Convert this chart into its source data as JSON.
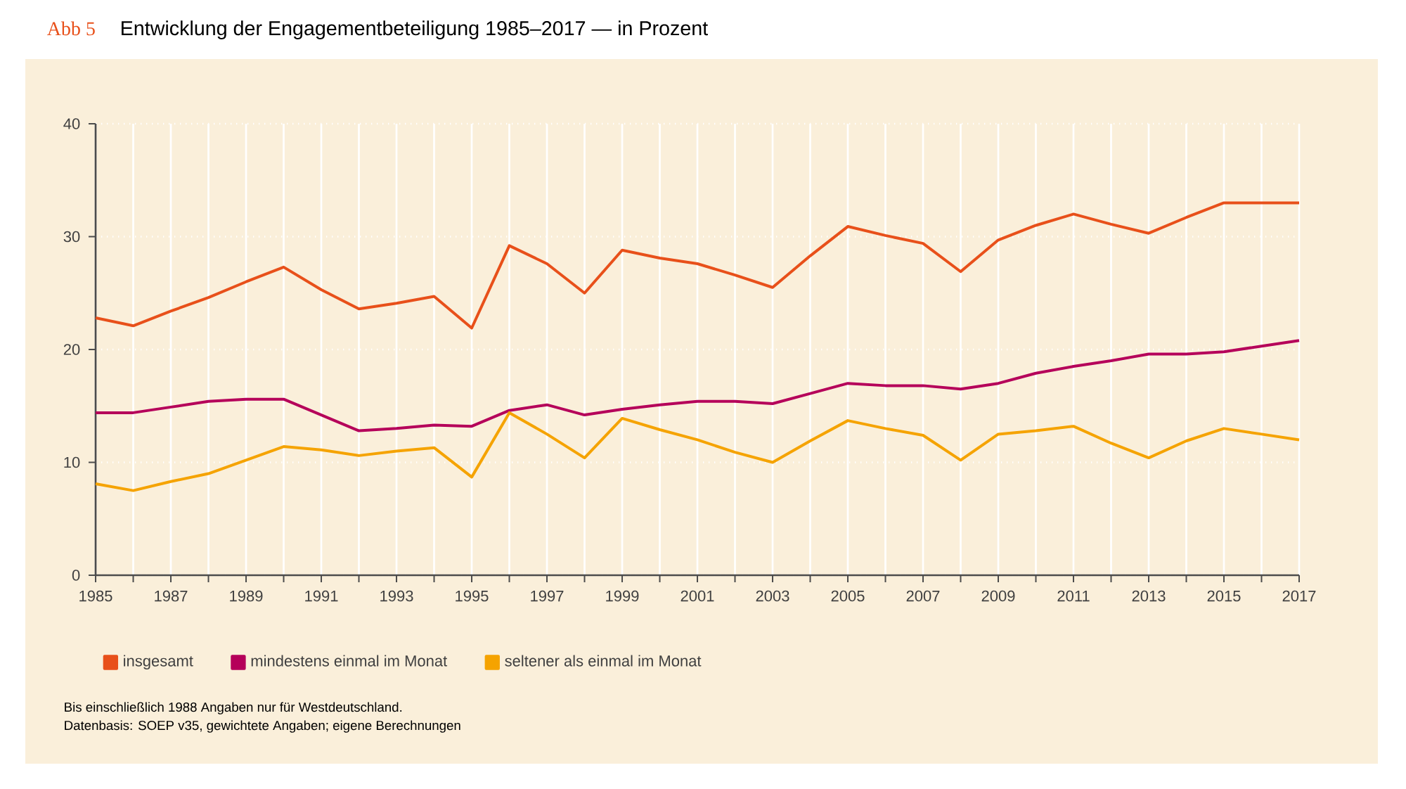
{
  "chart_data": {
    "type": "line",
    "title": "Entwicklung der Engagementbeteiligung 1985–2017 — in Prozent",
    "annotations": [
      "Abb 5",
      "Bis einschließlich 1988 Angaben nur für Westdeutschland.",
      "Datenbasis: SOEP v35, gewichtete Angaben; eigene Berechnungen"
    ],
    "x": [
      1985,
      1986,
      1987,
      1988,
      1989,
      1990,
      1991,
      1992,
      1993,
      1994,
      1995,
      1996,
      1997,
      1998,
      1999,
      2000,
      2001,
      2002,
      2003,
      2004,
      2005,
      2006,
      2007,
      2008,
      2009,
      2010,
      2011,
      2012,
      2013,
      2014,
      2015,
      2016,
      2017
    ],
    "series": [
      {
        "name": "insgesamt",
        "color": "#e8501a",
        "values": [
          22.8,
          22.1,
          23.4,
          24.6,
          26.0,
          27.3,
          25.3,
          23.6,
          24.1,
          24.7,
          21.9,
          29.2,
          27.6,
          25.0,
          28.8,
          28.1,
          27.6,
          26.6,
          25.5,
          28.3,
          30.9,
          30.1,
          29.4,
          26.9,
          29.7,
          31.0,
          32.0,
          31.1,
          30.3,
          31.7,
          33.0,
          33.0,
          33.0
        ]
      },
      {
        "name": "mindestens einmal im Monat",
        "color": "#b5005a",
        "values": [
          14.4,
          14.4,
          14.9,
          15.4,
          15.6,
          15.6,
          14.2,
          12.8,
          13.0,
          13.3,
          13.2,
          14.6,
          15.1,
          14.2,
          14.7,
          15.1,
          15.4,
          15.4,
          15.2,
          16.1,
          17.0,
          16.8,
          16.8,
          16.5,
          17.0,
          17.9,
          18.5,
          19.0,
          19.6,
          19.6,
          19.8,
          20.3,
          20.8
        ]
      },
      {
        "name": "seltener als einmal im Monat",
        "color": "#f5a300",
        "values": [
          8.1,
          7.5,
          8.3,
          9.0,
          10.2,
          11.4,
          11.1,
          10.6,
          11.0,
          11.3,
          8.7,
          14.4,
          12.5,
          10.4,
          13.9,
          12.9,
          12.0,
          10.9,
          10.0,
          11.9,
          13.7,
          13.0,
          12.4,
          10.2,
          12.5,
          12.8,
          13.2,
          11.7,
          10.4,
          11.9,
          13.0,
          12.5,
          12.0
        ]
      }
    ],
    "xlim": [
      1985,
      2017
    ],
    "xticks": [
      1985,
      {
        "value": 1986,
        "label": null
      },
      1987,
      {
        "value": 1988,
        "label": null
      },
      1989,
      {
        "value": 1990,
        "label": null
      },
      1991,
      {
        "value": 1992,
        "label": null
      },
      1993,
      {
        "value": 1994,
        "label": null
      },
      1995,
      {
        "value": 1996,
        "label": null
      },
      1997,
      {
        "value": 1998,
        "label": null
      },
      1999,
      {
        "value": 2000,
        "label": null
      },
      2001,
      {
        "value": 2002,
        "label": null
      },
      2003,
      {
        "value": 2004,
        "label": null
      },
      2005,
      {
        "value": 2006,
        "label": null
      },
      2007,
      {
        "value": 2008,
        "label": null
      },
      2009,
      {
        "value": 2010,
        "label": null
      },
      2011,
      {
        "value": 2012,
        "label": null
      },
      2013,
      {
        "value": 2014,
        "label": null
      },
      2015,
      {
        "value": 2016,
        "label": null
      },
      2017
    ],
    "ylim": [
      0,
      40
    ],
    "yticks": [
      0,
      10,
      20,
      30,
      40
    ],
    "grid": true,
    "legend": "bottom",
    "marker": "none",
    "line_style": "solid"
  }
}
